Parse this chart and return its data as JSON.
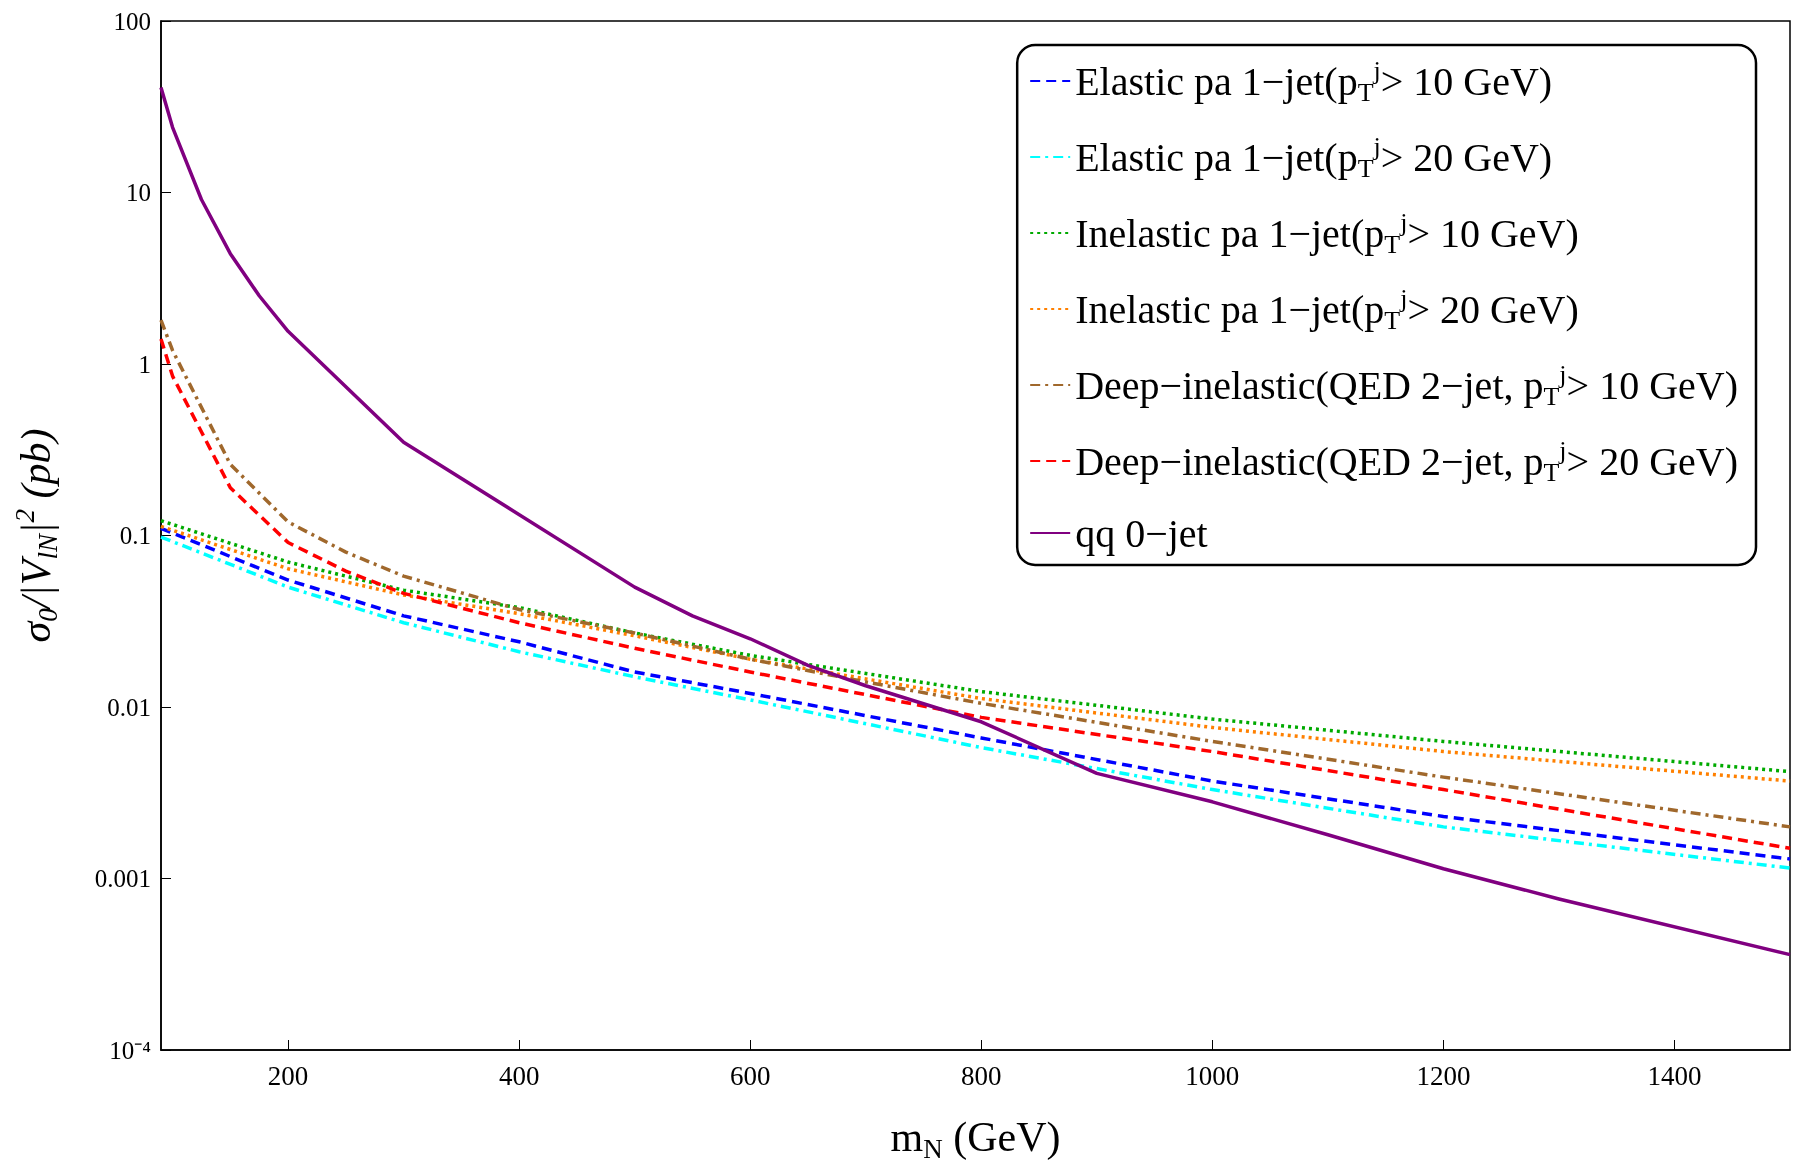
{
  "chart_data": {
    "type": "line",
    "xlabel": "m$_{N}$ (GeV)",
    "ylabel": "σ$_{0}$/|V$_{lN}$|$^{2}$ (pb)",
    "log": "y",
    "xlim": [
      90,
      1500
    ],
    "xticks": [
      200,
      400,
      600,
      800,
      1000,
      1200,
      1400
    ],
    "ylim": [
      0.0001,
      100
    ],
    "yticks": [
      {
        "value": 0.0001,
        "label": "10⁻⁴"
      },
      0.001,
      0.01,
      0.1,
      1,
      10,
      100
    ],
    "grid": false,
    "legend": "top right",
    "marker": "none",
    "series": [
      {
        "name": "Elastic pa 1−jet(p$_{T}$$^{j}$> 10 GeV)",
        "color": "#0000ff",
        "line_style": "dashed",
        "x": [
          90,
          200,
          300,
          400,
          500,
          600,
          800,
          1000,
          1200,
          1500
        ],
        "values": [
          0.11,
          0.055,
          0.034,
          0.024,
          0.016,
          0.012,
          0.0066,
          0.0037,
          0.0023,
          0.0013
        ]
      },
      {
        "name": "Elastic pa 1−jet(p$_{T}$$^{j}$> 20 GeV)",
        "color": "#00ffff",
        "line_style": "dashdot",
        "x": [
          90,
          200,
          300,
          400,
          500,
          600,
          800,
          1000,
          1200,
          1500
        ],
        "values": [
          0.098,
          0.05,
          0.031,
          0.021,
          0.015,
          0.011,
          0.0058,
          0.0033,
          0.002,
          0.00115
        ]
      },
      {
        "name": "Inelastic pa 1−jet(p$_{T}$$^{j}$> 10 GeV)",
        "color": "#00aa00",
        "line_style": "dotted",
        "x": [
          90,
          200,
          300,
          400,
          500,
          600,
          800,
          1000,
          1200,
          1500
        ],
        "values": [
          0.122,
          0.07,
          0.048,
          0.038,
          0.027,
          0.02,
          0.0123,
          0.0085,
          0.0063,
          0.0042
        ]
      },
      {
        "name": "Inelastic pa 1−jet(p$_{T}$$^{j}$> 20 GeV)",
        "color": "#ff8000",
        "line_style": "dotted",
        "x": [
          90,
          200,
          300,
          400,
          500,
          600,
          800,
          1000,
          1200,
          1500
        ],
        "values": [
          0.113,
          0.064,
          0.045,
          0.035,
          0.026,
          0.019,
          0.0112,
          0.0076,
          0.0055,
          0.0037
        ]
      },
      {
        "name": "Deep−inelastic(QED 2−jet, p$_{T}$$^{j}$> 10 GeV)",
        "color": "#a0682c",
        "line_style": "dashdot",
        "x": [
          90,
          100,
          150,
          200,
          250,
          300,
          400,
          500,
          600,
          700,
          800,
          1000,
          1200,
          1500
        ],
        "values": [
          1.8,
          1.2,
          0.26,
          0.12,
          0.08,
          0.058,
          0.037,
          0.027,
          0.019,
          0.014,
          0.0105,
          0.0063,
          0.0039,
          0.002
        ]
      },
      {
        "name": "Deep−inelastic(QED 2−jet, p$_{T}$$^{j}$> 20 GeV)",
        "color": "#ff0000",
        "line_style": "dashed",
        "x": [
          90,
          100,
          150,
          200,
          250,
          300,
          400,
          500,
          600,
          800,
          1000,
          1200,
          1500
        ],
        "values": [
          1.4,
          0.85,
          0.19,
          0.091,
          0.062,
          0.046,
          0.031,
          0.022,
          0.016,
          0.0087,
          0.0055,
          0.0033,
          0.0015
        ]
      },
      {
        "name": "qq 0−jet",
        "color": "#800080",
        "line_style": "solid",
        "x": [
          90,
          100,
          125,
          150,
          175,
          200,
          300,
          500,
          550,
          600,
          650,
          700,
          800,
          900,
          1000,
          1100,
          1200,
          1300,
          1500
        ],
        "values": [
          41,
          24,
          9.1,
          4.4,
          2.5,
          1.55,
          0.35,
          0.05,
          0.034,
          0.025,
          0.0175,
          0.0133,
          0.0082,
          0.0041,
          0.0028,
          0.0018,
          0.00114,
          0.00076,
          0.00036
        ]
      }
    ]
  }
}
